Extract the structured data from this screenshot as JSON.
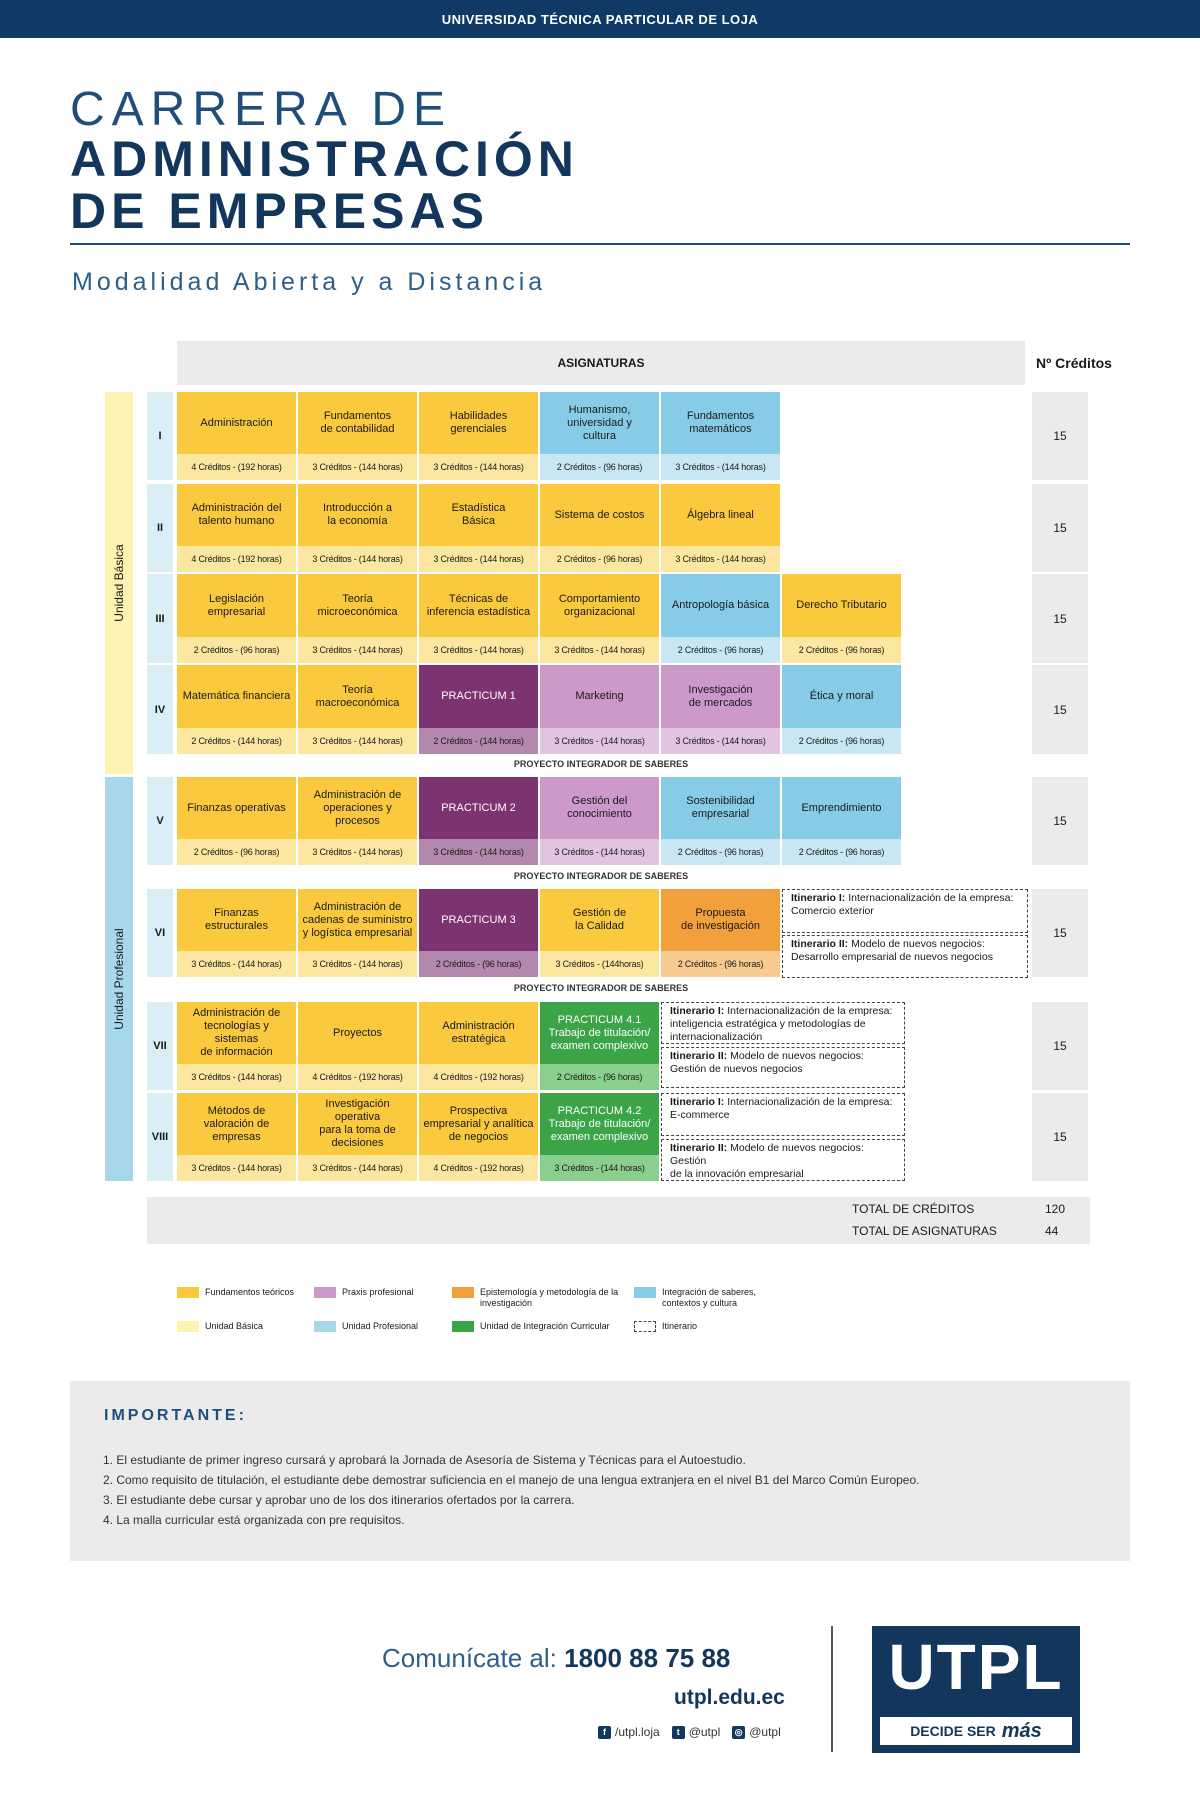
{
  "header": {
    "university": "UNIVERSIDAD TÉCNICA PARTICULAR DE LOJA"
  },
  "title": {
    "line1": "CARRERA DE",
    "line2": "ADMINISTRACIÓN",
    "line3": "DE EMPRESAS",
    "subtitle": "Modalidad Abierta y a Distancia"
  },
  "table": {
    "header": "ASIGNATURAS",
    "credits_header": "Nº Créditos",
    "unit_basic": "Unidad Básica",
    "unit_prof": "Unidad Profesional",
    "pis": "PROYECTO INTEGRADOR DE SABERES"
  },
  "colors": {
    "fund": "#fbc93e",
    "fund_light": "#fbe7a0",
    "integ": "#86cce6",
    "integ_light": "#c8e7f3",
    "practicum": "#7b3470",
    "practicum_light": "#b388ad",
    "praxis": "#cc99c9",
    "praxis_light": "#e2c4e0",
    "epist": "#f1a03b",
    "epist_light": "#f8cc90",
    "green": "#3aa447",
    "green_light": "#8bcf8f",
    "basic_unit": "#fdf3b0",
    "prof_unit": "#a7d8ea"
  },
  "semesters": [
    {
      "roman": "I",
      "credits": "15",
      "courses": [
        {
          "name": "Administración",
          "credits": "4 Créditos - (192 horas)",
          "type": "fund"
        },
        {
          "name": "Fundamentos\nde contabilidad",
          "credits": "3 Créditos - (144 horas)",
          "type": "fund"
        },
        {
          "name": "Habilidades\ngerenciales",
          "credits": "3 Créditos - (144 horas)",
          "type": "fund"
        },
        {
          "name": "Humanismo,\nuniversidad y\ncultura",
          "credits": "2 Créditos - (96 horas)",
          "type": "integ"
        },
        {
          "name": "Fundamentos\nmatemáticos",
          "credits": "3 Créditos - (144 horas)",
          "type": "integ"
        }
      ]
    },
    {
      "roman": "II",
      "credits": "15",
      "courses": [
        {
          "name": "Administración del\ntalento humano",
          "credits": "4 Créditos - (192 horas)",
          "type": "fund"
        },
        {
          "name": "Introducción a\nla economía",
          "credits": "3 Créditos - (144 horas)",
          "type": "fund"
        },
        {
          "name": "Estadística\nBásica",
          "credits": "3 Créditos - (144 horas)",
          "type": "fund"
        },
        {
          "name": "Sistema de costos",
          "credits": "2 Créditos - (96 horas)",
          "type": "fund"
        },
        {
          "name": "Álgebra lineal",
          "credits": "3 Créditos - (144 horas)",
          "type": "fund"
        }
      ]
    },
    {
      "roman": "III",
      "credits": "15",
      "courses": [
        {
          "name": "Legislación\nempresarial",
          "credits": "2 Créditos - (96 horas)",
          "type": "fund"
        },
        {
          "name": "Teoría\nmicroeconómica",
          "credits": "3 Créditos - (144 horas)",
          "type": "fund"
        },
        {
          "name": "Técnicas de\ninferencia estadística",
          "credits": "3 Créditos - (144 horas)",
          "type": "fund"
        },
        {
          "name": "Comportamiento\norganizacional",
          "credits": "3 Créditos - (144 horas)",
          "type": "fund"
        },
        {
          "name": "Antropología básica",
          "credits": "2 Créditos - (96 horas)",
          "type": "integ"
        },
        {
          "name": "Derecho Tributario",
          "credits": "2 Créditos - (96 horas)",
          "type": "fund"
        }
      ]
    },
    {
      "roman": "IV",
      "credits": "15",
      "courses": [
        {
          "name": "Matemática financiera",
          "credits": "2 Créditos - (144 horas)",
          "type": "fund"
        },
        {
          "name": "Teoría\nmacroeconómica",
          "credits": "3 Créditos - (144 horas)",
          "type": "fund"
        },
        {
          "name": "PRACTICUM 1",
          "credits": "2 Créditos - (144 horas)",
          "type": "practicum"
        },
        {
          "name": "Marketing",
          "credits": "3 Créditos - (144 horas)",
          "type": "praxis"
        },
        {
          "name": "Investigación\nde mercados",
          "credits": "3 Créditos - (144 horas)",
          "type": "praxis"
        },
        {
          "name": "Ética y moral",
          "credits": "2 Créditos - (96 horas)",
          "type": "integ"
        }
      ]
    },
    {
      "roman": "V",
      "credits": "15",
      "courses": [
        {
          "name": "Finanzas operativas",
          "credits": "2 Créditos - (96 horas)",
          "type": "fund"
        },
        {
          "name": "Administración de\noperaciones y\nprocesos",
          "credits": "3 Créditos - (144 horas)",
          "type": "fund"
        },
        {
          "name": "PRACTICUM 2",
          "credits": "3 Créditos - (144 horas)",
          "type": "practicum"
        },
        {
          "name": "Gestión del\nconocimiento",
          "credits": "3 Créditos - (144 horas)",
          "type": "praxis"
        },
        {
          "name": "Sostenibilidad\nempresarial",
          "credits": "2 Créditos - (96 horas)",
          "type": "integ"
        },
        {
          "name": "Emprendimiento",
          "credits": "2 Créditos - (96 horas)",
          "type": "integ"
        }
      ]
    },
    {
      "roman": "VI",
      "credits": "15",
      "courses": [
        {
          "name": "Finanzas\nestructurales",
          "credits": "3 Créditos - (144 horas)",
          "type": "fund"
        },
        {
          "name": "Administración de\ncadenas de suministro\ny logística empresarial",
          "credits": "3 Créditos - (144 horas)",
          "type": "fund"
        },
        {
          "name": "PRACTICUM 3",
          "credits": "2 Créditos - (96 horas)",
          "type": "practicum"
        },
        {
          "name": "Gestión de\nla Calidad",
          "credits": "3 Créditos - (144horas)",
          "type": "fund"
        },
        {
          "name": "Propuesta\nde investigación",
          "credits": "2 Créditos - (96 horas)",
          "type": "epist"
        }
      ],
      "itinerary": [
        {
          "label": "Itinerario I:",
          "text": "Internacionalización de la empresa:\nComercio exterior"
        },
        {
          "label": "Itinerario II:",
          "text": "Modelo de nuevos negocios:\nDesarrollo empresarial de nuevos negocios"
        }
      ]
    },
    {
      "roman": "VII",
      "credits": "15",
      "courses": [
        {
          "name": "Administración de\ntecnologías y sistemas\nde información",
          "credits": "3 Créditos - (144 horas)",
          "type": "fund"
        },
        {
          "name": "Proyectos",
          "credits": "4 Créditos - (192 horas)",
          "type": "fund"
        },
        {
          "name": "Administración\nestratégica",
          "credits": "4 Créditos - (192 horas)",
          "type": "fund"
        },
        {
          "name": "PRACTICUM 4.1\nTrabajo de titulación/\nexamen complexivo",
          "credits": "2 Créditos - (96 horas)",
          "type": "green"
        }
      ],
      "itinerary": [
        {
          "label": "Itinerario I:",
          "text": "Internacionalización de la empresa:\ninteligencia estratégica y metodologías de\ninternacionalización"
        },
        {
          "label": "Itinerario II:",
          "text": "Modelo de nuevos negocios:\nGestión de nuevos negocios"
        }
      ]
    },
    {
      "roman": "VIII",
      "credits": "15",
      "courses": [
        {
          "name": "Métodos de\nvaloración de\nempresas",
          "credits": "3 Créditos - (144 horas)",
          "type": "fund"
        },
        {
          "name": "Investigación operativa\npara la toma de\ndecisiones",
          "credits": "3 Créditos - (144 horas)",
          "type": "fund"
        },
        {
          "name": "Prospectiva\nempresarial y analítica\nde negocios",
          "credits": "4 Créditos - (192 horas)",
          "type": "fund"
        },
        {
          "name": "PRACTICUM 4.2\nTrabajo de titulación/\nexamen complexivo",
          "credits": "3 Créditos - (144 horas)",
          "type": "green"
        }
      ],
      "itinerary": [
        {
          "label": "Itinerario I:",
          "text": "Internacionalización de la empresa:\nE-commerce"
        },
        {
          "label": "Itinerario II:",
          "text": "Modelo de nuevos negocios: Gestión\nde la innovación empresarial"
        }
      ]
    }
  ],
  "totals": {
    "credits_label": "TOTAL DE CRÉDITOS",
    "credits_value": "120",
    "subjects_label": "TOTAL DE ASIGNATURAS",
    "subjects_value": "44"
  },
  "legend": [
    {
      "label": "Fundamentos teóricos",
      "color": "#fbc93e"
    },
    {
      "label": "Praxis profesional",
      "color": "#cc99c9"
    },
    {
      "label": "Epistemología y metodología de la\ninvestigación",
      "color": "#f1a03b"
    },
    {
      "label": "Integración de saberes,\ncontextos y cultura",
      "color": "#86cce6"
    },
    {
      "label": "Unidad Básica",
      "color": "#fdf3b0"
    },
    {
      "label": "Unidad Profesional",
      "color": "#a7d8ea"
    },
    {
      "label": "Unidad de Integración Curricular",
      "color": "#3aa447"
    },
    {
      "label": "Itinerario",
      "color": "dashed"
    }
  ],
  "important": {
    "title": "IMPORTANTE:",
    "notes": [
      "1. El estudiante de primer ingreso cursará y aprobará la Jornada de Asesoría de Sistema y Técnicas para el Autoestudio.",
      "2. Como requisito de titulación, el estudiante debe demostrar suficiencia en el manejo de una lengua extranjera en el nivel B1 del Marco Común Europeo.",
      "3. El estudiante debe cursar y aprobar uno de los dos itinerarios ofertados por la carrera.",
      "4. La malla curricular está organizada con pre requisitos."
    ]
  },
  "contact": {
    "label": "Comunícate al:",
    "phone": "1800 88 75 88",
    "web": "utpl.edu.ec",
    "facebook": "/utpl.loja",
    "twitter": "@utpl",
    "instagram": "@utpl"
  },
  "logo": {
    "text": "UTPL",
    "tag1": "DECIDE SER",
    "tag2": "más"
  }
}
